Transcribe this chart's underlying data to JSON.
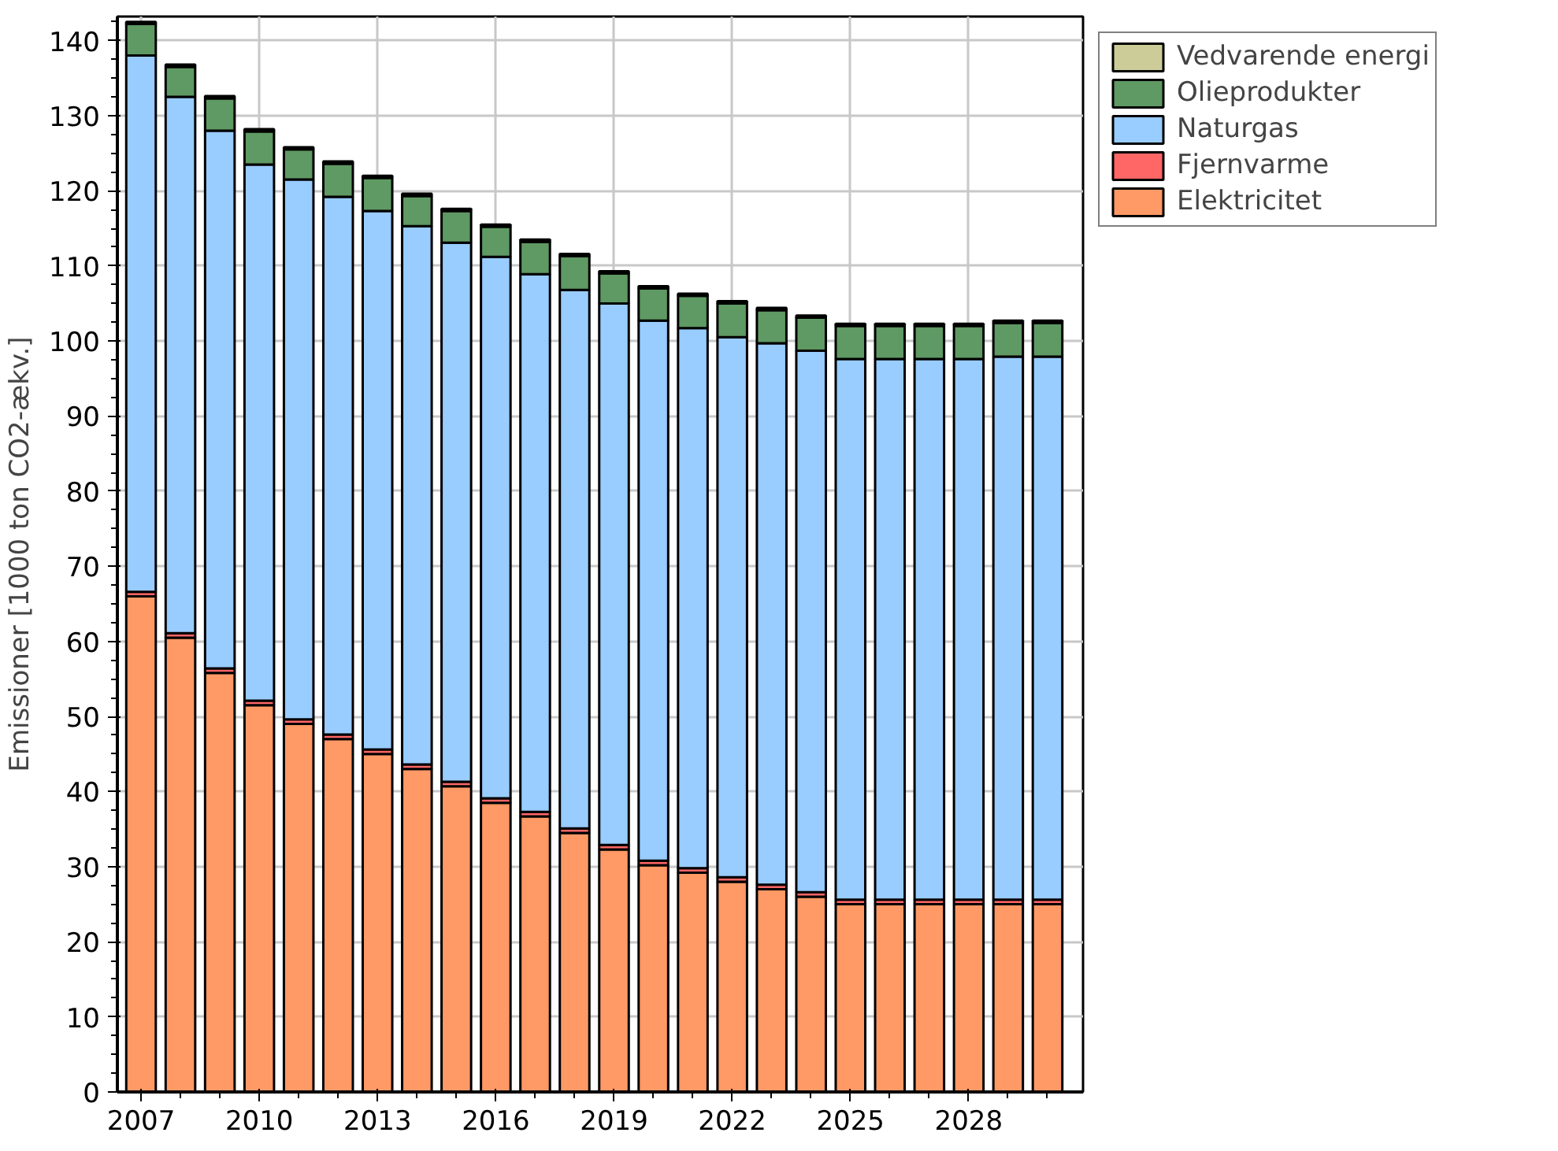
{
  "chart_data": {
    "type": "bar",
    "stacked": true,
    "ylabel": "Emissioner [1000 ton CO2-ækv.]",
    "x": [
      2007,
      2008,
      2009,
      2010,
      2011,
      2012,
      2013,
      2014,
      2015,
      2016,
      2017,
      2018,
      2019,
      2020,
      2021,
      2022,
      2023,
      2024,
      2025,
      2026,
      2027,
      2028,
      2029,
      2030
    ],
    "series": [
      {
        "name": "Elektricitet",
        "color": "#ff9966",
        "values": [
          66,
          60.5,
          55.8,
          51.5,
          49,
          47,
          45,
          43,
          40.7,
          38.5,
          36.7,
          34.5,
          32.3,
          30.2,
          29.2,
          28,
          27,
          26,
          25,
          25,
          25,
          25,
          25,
          25
        ]
      },
      {
        "name": "Fjernvarme",
        "color": "#ff6666",
        "values": [
          0.6,
          0.6,
          0.6,
          0.6,
          0.6,
          0.6,
          0.6,
          0.6,
          0.6,
          0.6,
          0.6,
          0.6,
          0.6,
          0.6,
          0.6,
          0.6,
          0.6,
          0.6,
          0.6,
          0.6,
          0.6,
          0.6,
          0.6,
          0.6
        ]
      },
      {
        "name": "Naturgas",
        "color": "#99ccff",
        "values": [
          71.4,
          71.4,
          71.6,
          71.4,
          71.9,
          71.6,
          71.7,
          71.7,
          71.8,
          72.1,
          71.6,
          71.7,
          72.1,
          71.9,
          71.9,
          71.9,
          72.1,
          72.1,
          72,
          72,
          72,
          72,
          72.3,
          72.3
        ]
      },
      {
        "name": "Olieprodukter",
        "color": "#5f9963",
        "values": [
          4.2,
          4,
          4.3,
          4.4,
          4,
          4.4,
          4.4,
          4,
          4.2,
          4,
          4.3,
          4.5,
          4,
          4.3,
          4.3,
          4.5,
          4.4,
          4.4,
          4.4,
          4.4,
          4.4,
          4.4,
          4.5,
          4.5
        ]
      },
      {
        "name": "Vedvarende energi",
        "color": "#cccc99",
        "values": [
          0.3,
          0.3,
          0.3,
          0.3,
          0.3,
          0.3,
          0.3,
          0.3,
          0.3,
          0.3,
          0.3,
          0.3,
          0.3,
          0.3,
          0.3,
          0.3,
          0.3,
          0.3,
          0.3,
          0.3,
          0.3,
          0.3,
          0.3,
          0.3
        ]
      }
    ],
    "xlim": [
      2006.4,
      2030.9
    ],
    "xticks": [
      2007,
      2010,
      2013,
      2016,
      2019,
      2022,
      2025,
      2028
    ],
    "ylim": [
      0,
      143.2
    ],
    "yticks": [
      0,
      10,
      20,
      30,
      40,
      50,
      60,
      70,
      80,
      90,
      100,
      110,
      120,
      130,
      140
    ],
    "grid": true,
    "legend": "top right"
  }
}
